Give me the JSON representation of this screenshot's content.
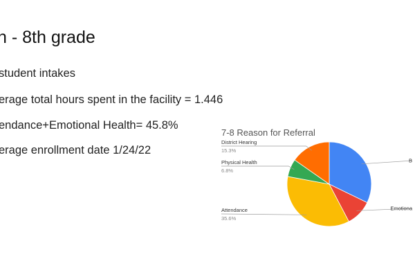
{
  "slide": {
    "title": "h - 8th grade",
    "bullets": [
      "student intakes",
      "erage total hours spent in the facility = 1.446",
      "endance+Emotional Health= 45.8%",
      "erage enrollment date 1/24/22"
    ]
  },
  "chart_data": {
    "type": "pie",
    "title": "7-8 Reason for Referral",
    "slices": [
      {
        "label": "B",
        "percent_label": "",
        "value": 32.2,
        "color": "#4285f4"
      },
      {
        "label": "Emotiona",
        "percent_label": "",
        "value": 10.1,
        "color": "#ea4335"
      },
      {
        "label": "Attendance",
        "percent_label": "35.6%",
        "value": 35.6,
        "color": "#fbbc04"
      },
      {
        "label": "Physical Health",
        "percent_label": "6.8%",
        "value": 6.8,
        "color": "#34a853"
      },
      {
        "label": "District Hearing",
        "percent_label": "15.3%",
        "value": 15.3,
        "color": "#ff6d01"
      }
    ],
    "legend": "none",
    "label_style": "callout"
  }
}
